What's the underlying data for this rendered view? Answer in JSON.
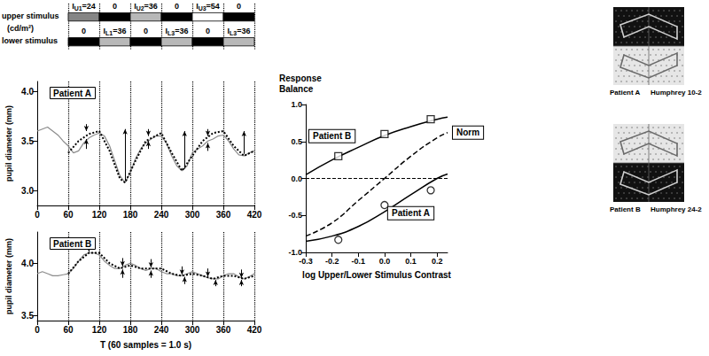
{
  "chart_data": [
    {
      "type": "stimulus",
      "unit": "(cd/m²)",
      "xlim": [
        0,
        420
      ],
      "xticks": [
        60,
        120,
        180,
        240,
        300,
        360,
        420
      ],
      "tick_labels": false,
      "grid": true,
      "rows": [
        {
          "label": "upper stimulus",
          "segments": [
            {
              "start": 60,
              "end": 120,
              "intensity": 24,
              "label": [
                "I",
                "U1",
                "=24"
              ]
            },
            {
              "start": 120,
              "end": 180,
              "intensity": 0,
              "label": [
                "0"
              ]
            },
            {
              "start": 180,
              "end": 240,
              "intensity": 36,
              "label": [
                "I",
                "U2",
                "=36"
              ]
            },
            {
              "start": 240,
              "end": 300,
              "intensity": 0,
              "label": [
                "0"
              ]
            },
            {
              "start": 300,
              "end": 360,
              "intensity": 54,
              "label": [
                "I",
                "U3",
                "=54"
              ]
            },
            {
              "start": 360,
              "end": 420,
              "intensity": 0,
              "label": [
                "0"
              ]
            }
          ]
        },
        {
          "label": "lower stimulus",
          "segments": [
            {
              "start": 60,
              "end": 120,
              "intensity": 0,
              "label": [
                "0"
              ]
            },
            {
              "start": 120,
              "end": 180,
              "intensity": 36,
              "label": [
                "I",
                "L1",
                "=36"
              ]
            },
            {
              "start": 180,
              "end": 240,
              "intensity": 0,
              "label": [
                "0"
              ]
            },
            {
              "start": 240,
              "end": 300,
              "intensity": 36,
              "label": [
                "I",
                "L3",
                "=36"
              ]
            },
            {
              "start": 300,
              "end": 360,
              "intensity": 0,
              "label": [
                "0"
              ]
            },
            {
              "start": 360,
              "end": 420,
              "intensity": 36,
              "label": [
                "I",
                "L3",
                "=36"
              ]
            }
          ]
        }
      ]
    },
    {
      "type": "line",
      "title": "Patient A",
      "y_label": "pupil diameter (mm)",
      "xlim": [
        0,
        420
      ],
      "xticks": [
        0,
        60,
        120,
        180,
        240,
        300,
        360,
        420
      ],
      "ylim": [
        2.85,
        4.1
      ],
      "yticks": [
        {
          "value": 3,
          "label": "3.0"
        },
        3.5,
        {
          "value": 4,
          "label": "4.0"
        }
      ],
      "grid": true,
      "series": [
        {
          "color": "#8c8c8c",
          "line_style": "solid",
          "x": [
            0,
            10,
            20,
            30,
            40,
            50,
            60,
            70,
            80,
            90,
            100,
            110,
            120,
            130,
            140,
            150,
            160,
            170,
            180,
            190,
            200,
            210,
            220,
            230,
            240,
            250,
            260,
            270,
            280,
            290,
            300,
            310,
            320,
            330,
            340,
            350,
            360,
            370,
            380,
            390,
            400,
            410,
            420
          ],
          "values": [
            3.6,
            3.62,
            3.64,
            3.6,
            3.56,
            3.5,
            3.45,
            3.38,
            3.4,
            3.48,
            3.53,
            3.56,
            3.58,
            3.55,
            3.45,
            3.3,
            3.15,
            3.08,
            3.18,
            3.32,
            3.42,
            3.48,
            3.52,
            3.55,
            3.55,
            3.48,
            3.35,
            3.25,
            3.2,
            3.25,
            3.38,
            3.42,
            3.45,
            3.5,
            3.52,
            3.55,
            3.56,
            3.5,
            3.42,
            3.36,
            3.35,
            3.38,
            3.4
          ]
        },
        {
          "color": "#000000",
          "line_style": "dotted",
          "x": [
            60,
            80,
            100,
            120,
            140,
            160,
            170,
            190,
            210,
            240,
            260,
            280,
            300,
            320,
            340,
            360,
            380,
            400,
            420
          ],
          "values": [
            3.38,
            3.5,
            3.57,
            3.6,
            3.4,
            3.12,
            3.08,
            3.3,
            3.5,
            3.58,
            3.38,
            3.2,
            3.35,
            3.5,
            3.58,
            3.6,
            3.45,
            3.35,
            3.4
          ],
          "arrows": [
            {
              "x": 95,
              "from": 3.67,
              "to": 3.6
            },
            {
              "x": 95,
              "from": 3.42,
              "to": 3.52
            },
            {
              "x": 170,
              "from": 3.1,
              "to": 3.62
            },
            {
              "x": 215,
              "from": 3.62,
              "to": 3.55
            },
            {
              "x": 215,
              "from": 3.42,
              "to": 3.5
            },
            {
              "x": 285,
              "from": 3.22,
              "to": 3.6
            },
            {
              "x": 330,
              "from": 3.62,
              "to": 3.55
            },
            {
              "x": 330,
              "from": 3.4,
              "to": 3.48
            },
            {
              "x": 400,
              "from": 3.37,
              "to": 3.6
            }
          ]
        }
      ]
    },
    {
      "type": "line",
      "title": "Patient B",
      "y_label": "pupil diameter (mm)",
      "x_label": "T (60 samples = 1.0 s)",
      "xlim": [
        0,
        420
      ],
      "xticks": [
        0,
        60,
        120,
        180,
        240,
        300,
        360,
        420
      ],
      "ylim": [
        3.45,
        4.3
      ],
      "yticks": [
        3.5,
        {
          "value": 4,
          "label": "4.0"
        }
      ],
      "grid": true,
      "series": [
        {
          "color": "#8c8c8c",
          "line_style": "solid",
          "x": [
            0,
            10,
            20,
            30,
            40,
            50,
            60,
            70,
            80,
            90,
            100,
            110,
            120,
            130,
            140,
            150,
            160,
            170,
            180,
            190,
            200,
            210,
            220,
            230,
            240,
            250,
            260,
            270,
            280,
            290,
            300,
            310,
            320,
            330,
            340,
            350,
            360,
            370,
            380,
            390,
            400,
            410,
            420
          ],
          "values": [
            3.9,
            3.92,
            3.9,
            3.88,
            3.88,
            3.89,
            3.9,
            3.95,
            4.02,
            4.08,
            4.1,
            4.1,
            4.08,
            4.02,
            3.98,
            3.95,
            3.95,
            3.98,
            4.0,
            3.98,
            3.95,
            3.93,
            3.95,
            3.95,
            3.92,
            3.9,
            3.9,
            3.88,
            3.88,
            3.9,
            3.92,
            3.9,
            3.88,
            3.86,
            3.85,
            3.85,
            3.88,
            3.9,
            3.9,
            3.87,
            3.85,
            3.87,
            3.9
          ]
        },
        {
          "color": "#000000",
          "line_style": "dotted",
          "x": [
            60,
            80,
            100,
            120,
            140,
            160,
            180,
            200,
            220,
            240,
            260,
            280,
            300,
            320,
            340,
            360,
            380,
            400,
            420
          ],
          "values": [
            3.9,
            4.02,
            4.1,
            4.1,
            4.0,
            3.95,
            3.98,
            3.95,
            3.95,
            3.95,
            3.9,
            3.88,
            3.9,
            3.88,
            3.85,
            3.88,
            3.88,
            3.85,
            3.88
          ],
          "arrows": [
            {
              "x": 100,
              "from": 4.18,
              "to": 4.11
            },
            {
              "x": 165,
              "from": 4.05,
              "to": 3.97
            },
            {
              "x": 165,
              "from": 3.86,
              "to": 3.94
            },
            {
              "x": 220,
              "from": 4.04,
              "to": 3.96
            },
            {
              "x": 220,
              "from": 3.86,
              "to": 3.93
            },
            {
              "x": 280,
              "from": 3.97,
              "to": 3.89
            },
            {
              "x": 285,
              "from": 3.8,
              "to": 3.87
            },
            {
              "x": 330,
              "from": 3.95,
              "to": 3.87
            },
            {
              "x": 345,
              "from": 3.78,
              "to": 3.84
            },
            {
              "x": 395,
              "from": 3.94,
              "to": 3.86
            },
            {
              "x": 395,
              "from": 3.78,
              "to": 3.84
            }
          ]
        }
      ]
    },
    {
      "type": "scatter",
      "y_label": "Response Balance",
      "x_label": "log Upper/Lower Stimulus Contrast",
      "xlim": [
        -0.3,
        0.24
      ],
      "xticks": [
        -0.3,
        -0.2,
        -0.1,
        {
          "value": 0,
          "label": "0.0"
        },
        0.1,
        0.2
      ],
      "ylim": [
        -1,
        1
      ],
      "yticks": [
        {
          "value": -1,
          "label": "-1.0"
        },
        -0.5,
        {
          "value": 0,
          "label": "0.0"
        },
        0.5,
        {
          "value": 1,
          "label": "1.0"
        }
      ],
      "reference_line": {
        "y": 0,
        "line_style": "dashed"
      },
      "series": [
        {
          "name": "Patient B",
          "color": "#000000",
          "marker": "square",
          "x": [
            -0.176,
            0,
            0.176
          ],
          "values": [
            0.3,
            0.6,
            0.8
          ],
          "fit": {
            "line_style": "solid",
            "x": [
              -0.3,
              -0.2,
              -0.1,
              0,
              0.1,
              0.2,
              0.24
            ],
            "values": [
              0.05,
              0.25,
              0.42,
              0.58,
              0.7,
              0.8,
              0.83
            ]
          }
        },
        {
          "name": "Norm",
          "type": "line",
          "color": "#000000",
          "line_style": "dashed",
          "x": [
            -0.3,
            -0.2,
            -0.1,
            0,
            0.1,
            0.2,
            0.24
          ],
          "values": [
            -0.78,
            -0.6,
            -0.3,
            0,
            0.3,
            0.55,
            0.62
          ]
        },
        {
          "name": "Patient A",
          "color": "#000000",
          "marker": "circle",
          "x": [
            -0.176,
            0,
            0.176
          ],
          "values": [
            -0.83,
            -0.36,
            -0.16
          ],
          "fit": {
            "line_style": "solid",
            "x": [
              -0.3,
              -0.2,
              -0.1,
              0,
              0.1,
              0.2,
              0.24
            ],
            "values": [
              -0.85,
              -0.78,
              -0.65,
              -0.45,
              -0.22,
              0,
              0.06
            ]
          }
        }
      ]
    }
  ],
  "visual_fields": [
    {
      "patient": "Patient A",
      "test": "Humphrey 10-2",
      "defect": "upper"
    },
    {
      "patient": "Patient B",
      "test": "Humphrey 24-2",
      "defect": "lower"
    }
  ]
}
